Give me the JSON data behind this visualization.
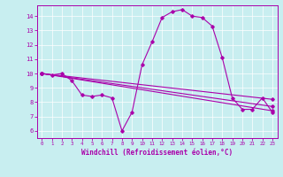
{
  "title": "",
  "xlabel": "Windchill (Refroidissement éolien,°C)",
  "background_color": "#c8eef0",
  "line_color": "#aa00aa",
  "xlim": [
    -0.5,
    23.5
  ],
  "ylim": [
    5.5,
    14.75
  ],
  "xticks": [
    0,
    1,
    2,
    3,
    4,
    5,
    6,
    7,
    8,
    9,
    10,
    11,
    12,
    13,
    14,
    15,
    16,
    17,
    18,
    19,
    20,
    21,
    22,
    23
  ],
  "yticks": [
    6,
    7,
    8,
    9,
    10,
    11,
    12,
    13,
    14
  ],
  "line1_x": [
    0,
    1,
    2,
    3,
    4,
    5,
    6,
    7,
    8,
    9,
    10,
    11,
    12,
    13,
    14,
    15,
    16,
    17,
    18,
    19,
    20,
    21,
    22,
    23
  ],
  "line1_y": [
    10.0,
    9.9,
    10.0,
    9.5,
    8.5,
    8.4,
    8.5,
    8.3,
    6.0,
    7.3,
    10.6,
    12.2,
    13.9,
    14.3,
    14.45,
    14.0,
    13.9,
    13.3,
    11.1,
    8.3,
    7.5,
    7.5,
    8.3,
    7.3
  ],
  "line2_x": [
    0,
    23
  ],
  "line2_y": [
    10.0,
    8.2
  ],
  "line3_x": [
    0,
    23
  ],
  "line3_y": [
    10.0,
    7.7
  ],
  "line4_x": [
    0,
    23
  ],
  "line4_y": [
    10.0,
    7.4
  ],
  "grid_color": "#ffffff",
  "marker": "D",
  "markersize": 1.8,
  "linewidth": 0.8
}
